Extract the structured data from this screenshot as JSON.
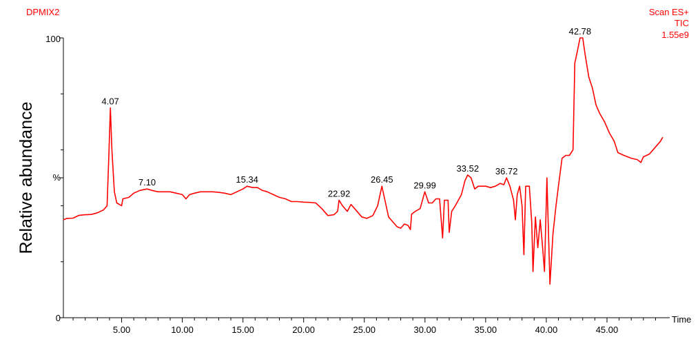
{
  "chart_data": {
    "type": "line",
    "sample_name": "DPMIX2",
    "scan_mode": "Scan ES+",
    "trace_type": "TIC",
    "intensity": "1.55e9",
    "xlabel": "Time",
    "ylabel": "Relative abundance",
    "y_unit_label": "%",
    "y_tick_labels": [
      "0",
      "100"
    ],
    "xlim": [
      0.2,
      49.6
    ],
    "ylim": [
      0,
      100
    ],
    "x_tick_values": [
      5,
      10,
      15,
      20,
      25,
      30,
      35,
      40,
      45
    ],
    "x_tick_labels": [
      "5.00",
      "10.00",
      "15.00",
      "20.00",
      "25.00",
      "30.00",
      "35.00",
      "40.00",
      "45.00"
    ],
    "line_color": "#ff0000",
    "peak_labels": [
      {
        "x": 4.07,
        "y": 75,
        "label": "4.07"
      },
      {
        "x": 7.1,
        "y": 46,
        "label": "7.10"
      },
      {
        "x": 15.34,
        "y": 47,
        "label": "15.34"
      },
      {
        "x": 22.92,
        "y": 42,
        "label": "22.92"
      },
      {
        "x": 26.45,
        "y": 47,
        "label": "26.45"
      },
      {
        "x": 29.99,
        "y": 45,
        "label": "29.99"
      },
      {
        "x": 33.52,
        "y": 51,
        "label": "33.52"
      },
      {
        "x": 36.72,
        "y": 50,
        "label": "36.72"
      },
      {
        "x": 42.78,
        "y": 100,
        "label": "42.78"
      }
    ],
    "series": [
      {
        "values": [
          [
            0.2,
            35
          ],
          [
            0.5,
            35.5
          ],
          [
            1.0,
            35.6
          ],
          [
            1.5,
            36.6
          ],
          [
            2.0,
            36.8
          ],
          [
            2.5,
            36.9
          ],
          [
            3.0,
            37.5
          ],
          [
            3.5,
            38.5
          ],
          [
            3.8,
            40
          ],
          [
            3.95,
            58
          ],
          [
            4.07,
            75
          ],
          [
            4.2,
            60
          ],
          [
            4.4,
            45
          ],
          [
            4.6,
            41
          ],
          [
            5.0,
            40
          ],
          [
            5.1,
            42.5
          ],
          [
            5.6,
            43
          ],
          [
            6.0,
            44.5
          ],
          [
            6.5,
            45.5
          ],
          [
            7.1,
            46
          ],
          [
            7.5,
            45.5
          ],
          [
            8.0,
            45
          ],
          [
            9.0,
            45
          ],
          [
            9.5,
            44.5
          ],
          [
            10.0,
            44
          ],
          [
            10.3,
            42.5
          ],
          [
            10.6,
            44
          ],
          [
            11.0,
            44.5
          ],
          [
            11.5,
            45
          ],
          [
            12.0,
            45
          ],
          [
            12.5,
            45
          ],
          [
            13.0,
            44.8
          ],
          [
            13.5,
            44.5
          ],
          [
            14.0,
            44
          ],
          [
            14.5,
            45
          ],
          [
            15.0,
            46
          ],
          [
            15.34,
            47
          ],
          [
            15.8,
            46.5
          ],
          [
            16.2,
            46.5
          ],
          [
            16.6,
            45.5
          ],
          [
            17.0,
            45
          ],
          [
            17.5,
            44
          ],
          [
            18.0,
            43
          ],
          [
            18.5,
            42.5
          ],
          [
            19.0,
            41.5
          ],
          [
            19.5,
            41.5
          ],
          [
            20.0,
            41.3
          ],
          [
            20.5,
            41.2
          ],
          [
            21.0,
            41
          ],
          [
            21.5,
            39
          ],
          [
            22.0,
            36.5
          ],
          [
            22.5,
            36.8
          ],
          [
            22.8,
            38
          ],
          [
            22.92,
            42
          ],
          [
            23.2,
            40
          ],
          [
            23.6,
            38
          ],
          [
            23.9,
            40.5
          ],
          [
            24.3,
            38.5
          ],
          [
            24.8,
            36
          ],
          [
            25.2,
            35.5
          ],
          [
            25.7,
            36.5
          ],
          [
            26.1,
            40
          ],
          [
            26.45,
            47
          ],
          [
            26.7,
            42
          ],
          [
            27.0,
            36
          ],
          [
            27.4,
            34
          ],
          [
            27.7,
            32.5
          ],
          [
            28.0,
            32
          ],
          [
            28.3,
            33.5
          ],
          [
            28.6,
            33
          ],
          [
            28.8,
            31.5
          ],
          [
            28.9,
            37
          ],
          [
            29.2,
            38
          ],
          [
            29.6,
            39
          ],
          [
            29.99,
            45
          ],
          [
            30.3,
            41
          ],
          [
            30.6,
            41
          ],
          [
            30.9,
            42.5
          ],
          [
            31.2,
            42.5
          ],
          [
            31.45,
            28.5
          ],
          [
            31.6,
            42
          ],
          [
            31.9,
            42
          ],
          [
            32.0,
            30.5
          ],
          [
            32.2,
            38
          ],
          [
            32.5,
            40
          ],
          [
            33.0,
            44
          ],
          [
            33.3,
            49
          ],
          [
            33.52,
            51
          ],
          [
            33.8,
            50
          ],
          [
            34.1,
            46
          ],
          [
            34.4,
            47
          ],
          [
            35.0,
            47
          ],
          [
            35.4,
            46.5
          ],
          [
            35.8,
            47
          ],
          [
            36.2,
            48
          ],
          [
            36.5,
            47.5
          ],
          [
            36.72,
            50
          ],
          [
            37.0,
            47
          ],
          [
            37.3,
            42
          ],
          [
            37.45,
            35
          ],
          [
            37.6,
            44
          ],
          [
            37.8,
            47
          ],
          [
            38.0,
            40
          ],
          [
            38.15,
            22.5
          ],
          [
            38.3,
            47
          ],
          [
            38.6,
            47
          ],
          [
            38.8,
            34
          ],
          [
            38.9,
            16.5
          ],
          [
            39.1,
            36
          ],
          [
            39.3,
            25
          ],
          [
            39.5,
            35
          ],
          [
            39.7,
            25
          ],
          [
            39.85,
            16.5
          ],
          [
            40.05,
            50
          ],
          [
            40.3,
            12
          ],
          [
            40.55,
            30
          ],
          [
            40.8,
            40
          ],
          [
            41.0,
            47
          ],
          [
            41.3,
            57
          ],
          [
            41.6,
            58
          ],
          [
            41.9,
            58
          ],
          [
            42.2,
            60
          ],
          [
            42.35,
            91
          ],
          [
            42.55,
            95
          ],
          [
            42.78,
            100
          ],
          [
            43.0,
            100
          ],
          [
            43.2,
            94
          ],
          [
            43.5,
            86
          ],
          [
            43.8,
            82
          ],
          [
            44.1,
            76
          ],
          [
            44.4,
            73
          ],
          [
            44.8,
            70
          ],
          [
            45.2,
            66
          ],
          [
            45.6,
            63
          ],
          [
            45.9,
            59
          ],
          [
            46.4,
            58
          ],
          [
            47.0,
            57
          ],
          [
            47.5,
            56.5
          ],
          [
            47.8,
            55.5
          ],
          [
            48.0,
            57.5
          ],
          [
            48.5,
            58.5
          ],
          [
            49.0,
            61
          ],
          [
            49.4,
            63
          ],
          [
            49.6,
            64.5
          ]
        ]
      }
    ]
  }
}
